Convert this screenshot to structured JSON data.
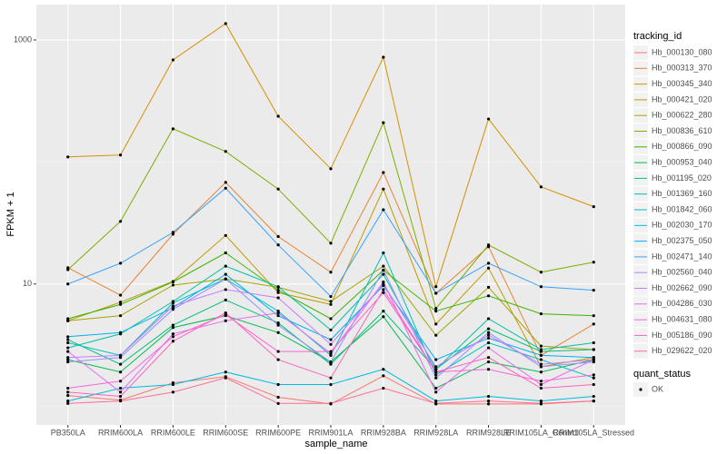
{
  "chart_data": {
    "type": "line",
    "x_label": "sample_name",
    "y_label": "FPKM + 1",
    "log_y": true,
    "grid": true,
    "categories": [
      "PB350LA",
      "RRIM600LA",
      "RRIM600LE",
      "RRIM600SE",
      "RRIM600PE",
      "RRIM901LA",
      "RRIM928BA",
      "RRIM928LA",
      "RRIM928LE",
      "RRIM105LA_Control",
      "RRIM105LA_Stressed"
    ],
    "ylim": [
      0.7,
      1950
    ],
    "yticks": [
      10,
      1000
    ],
    "minor_yticks": [
      1,
      100
    ],
    "legend_title": "tracking_id",
    "series": [
      {
        "name": "Hb_000130_080",
        "color": "#F8766D",
        "values": [
          1.22,
          1.12,
          1.55,
          1.74,
          1.18,
          1.04,
          1.77,
          1.04,
          1.04,
          1.04,
          1.1
        ]
      },
      {
        "name": "Hb_000313_370",
        "color": "#EA8331",
        "values": [
          13.6,
          8.1,
          25.6,
          68,
          24.5,
          12.5,
          82,
          8.4,
          20.2,
          2.6,
          4.7
        ]
      },
      {
        "name": "Hb_000345_340",
        "color": "#D89000",
        "values": [
          110,
          114,
          686,
          1361,
          237,
          88,
          722,
          9.5,
          225,
          62.5,
          43
        ]
      },
      {
        "name": "Hb_000421_020",
        "color": "#C09B00",
        "values": [
          5.0,
          7.1,
          10.5,
          25,
          8.5,
          6.8,
          60,
          4.7,
          13.5,
          2.1,
          2.5
        ]
      },
      {
        "name": "Hb_000622_280",
        "color": "#A3A500",
        "values": [
          5.0,
          5.5,
          9.8,
          11,
          9.4,
          7.2,
          14,
          3.8,
          9.4,
          3.1,
          2.9
        ]
      },
      {
        "name": "Hb_000836_610",
        "color": "#7CAE00",
        "values": [
          13.1,
          32.6,
          187,
          122,
          60,
          21.6,
          210,
          6.3,
          20.9,
          12.5,
          15.1
        ]
      },
      {
        "name": "Hb_000866_090",
        "color": "#39B600",
        "values": [
          5.2,
          6.8,
          10.4,
          18,
          8.9,
          5.2,
          13,
          6,
          8,
          5.7,
          5.5
        ]
      },
      {
        "name": "Hb_000953_040",
        "color": "#00BB4E",
        "values": [
          2.4,
          1.9,
          4.4,
          5.5,
          4,
          2.3,
          5.4,
          1.4,
          2.3,
          1.9,
          2.4
        ]
      },
      {
        "name": "Hb_001195_020",
        "color": "#00BF7D",
        "values": [
          3.5,
          2.2,
          4.6,
          7.4,
          4.8,
          2.2,
          6,
          2,
          4.3,
          2.8,
          2.9
        ]
      },
      {
        "name": "Hb_001369_160",
        "color": "#00C1A3",
        "values": [
          3.0,
          3.9,
          7.2,
          14,
          9.5,
          4.2,
          12,
          2,
          5.2,
          2.9,
          3.3
        ]
      },
      {
        "name": "Hb_001842_060",
        "color": "#00BFC4",
        "values": [
          3.3,
          2.6,
          7,
          11,
          6,
          2.6,
          18,
          1.8,
          3.3,
          2.4,
          1.7
        ]
      },
      {
        "name": "Hb_002030_170",
        "color": "#00BAE0",
        "values": [
          1.1,
          1.4,
          1.5,
          1.9,
          1.5,
          1.5,
          2.0,
          1.1,
          1.2,
          1.1,
          1.2
        ]
      },
      {
        "name": "Hb_002375_050",
        "color": "#00B0F6",
        "values": [
          3.7,
          4,
          6.4,
          12,
          5.5,
          3.5,
          9.7,
          2.4,
          3.6,
          2.6,
          2.5
        ]
      },
      {
        "name": "Hb_002471_140",
        "color": "#35A2FF",
        "values": [
          10,
          14.8,
          26.5,
          61,
          20.9,
          7.9,
          40.6,
          8.4,
          14.8,
          9.5,
          8.9
        ]
      },
      {
        "name": "Hb_002560_040",
        "color": "#9590FF",
        "values": [
          2.3,
          2.5,
          6.2,
          11,
          4.6,
          2.3,
          13,
          1.7,
          4,
          2.1,
          2.3
        ]
      },
      {
        "name": "Hb_002662_090",
        "color": "#C77CFF",
        "values": [
          2.5,
          2.6,
          6.6,
          9,
          7.7,
          3.2,
          10,
          2.1,
          3.8,
          2.2,
          2.4
        ]
      },
      {
        "name": "Hb_004286_030",
        "color": "#E76BF3",
        "values": [
          2.8,
          1.3,
          3.9,
          5,
          5.8,
          2.7,
          10.4,
          1.3,
          3,
          1.5,
          2.4
        ]
      },
      {
        "name": "Hb_004631_080",
        "color": "#FA62DB",
        "values": [
          1.4,
          1.6,
          3.7,
          5.6,
          2.8,
          2.8,
          8.5,
          1.9,
          2,
          1.6,
          1.8
        ]
      },
      {
        "name": "Hb_005186_090",
        "color": "#FF62BC",
        "values": [
          1.3,
          1.2,
          3.4,
          5.8,
          2.4,
          1.7,
          9,
          1.9,
          2.5,
          1.4,
          1.5
        ]
      },
      {
        "name": "Hb_029622_020",
        "color": "#FF6C91",
        "values": [
          1.05,
          1.1,
          1.3,
          1.7,
          1.05,
          1.05,
          1.4,
          1.05,
          1.1,
          1.05,
          1.1
        ]
      }
    ],
    "point_legend_title": "quant_status",
    "point_legend_label": "OK",
    "point_color": "#000000"
  }
}
